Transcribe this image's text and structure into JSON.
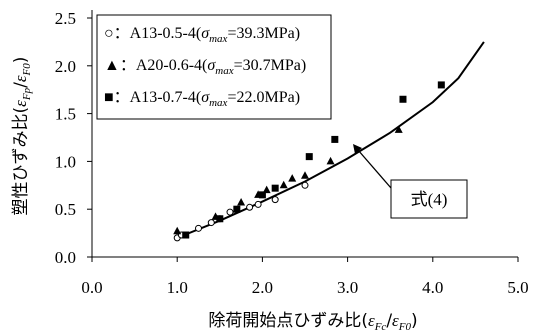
{
  "chart_data": {
    "type": "scatter",
    "xlabel": "除荷開始点ひずみ比(εFc/εF0)",
    "ylabel": "塑性ひずみ比(εFp/εF0)",
    "xlim": [
      0.0,
      5.0
    ],
    "ylim": [
      0.0,
      2.5
    ],
    "x_ticks": [
      "0.0",
      "1.0",
      "2.0",
      "3.0",
      "4.0",
      "5.0"
    ],
    "y_ticks": [
      "0.0",
      "0.5",
      "1.0",
      "1.5",
      "2.0",
      "2.5"
    ],
    "grid": false,
    "legend_position": "top-left",
    "series": [
      {
        "name": "A13-0.5-4(σmax=39.3MPa)",
        "marker": "open-circle",
        "points": [
          [
            1.0,
            0.2
          ],
          [
            1.05,
            0.23
          ],
          [
            1.25,
            0.3
          ],
          [
            1.4,
            0.36
          ],
          [
            1.5,
            0.4
          ],
          [
            1.62,
            0.47
          ],
          [
            1.85,
            0.52
          ],
          [
            1.95,
            0.55
          ],
          [
            2.15,
            0.6
          ],
          [
            2.5,
            0.75
          ]
        ]
      },
      {
        "name": "A20-0.6-4(σmax=30.7MPa)",
        "marker": "filled-triangle",
        "points": [
          [
            1.0,
            0.27
          ],
          [
            1.45,
            0.42
          ],
          [
            1.75,
            0.57
          ],
          [
            1.95,
            0.65
          ],
          [
            2.05,
            0.7
          ],
          [
            2.25,
            0.75
          ],
          [
            2.35,
            0.82
          ],
          [
            2.5,
            0.85
          ],
          [
            2.8,
            1.0
          ],
          [
            3.6,
            1.33
          ]
        ]
      },
      {
        "name": "A13-0.7-4(σmax=22.0MPa)",
        "marker": "filled-square",
        "points": [
          [
            1.1,
            0.23
          ],
          [
            1.5,
            0.4
          ],
          [
            1.7,
            0.5
          ],
          [
            2.0,
            0.65
          ],
          [
            2.15,
            0.72
          ],
          [
            2.55,
            1.05
          ],
          [
            2.85,
            1.23
          ],
          [
            3.65,
            1.65
          ],
          [
            4.1,
            1.8
          ]
        ]
      }
    ],
    "curve": {
      "name": "式(4)",
      "points": [
        [
          1.0,
          0.2
        ],
        [
          1.5,
          0.38
        ],
        [
          2.0,
          0.58
        ],
        [
          2.5,
          0.79
        ],
        [
          3.0,
          1.03
        ],
        [
          3.5,
          1.3
        ],
        [
          4.0,
          1.62
        ],
        [
          4.3,
          1.87
        ],
        [
          4.6,
          2.25
        ]
      ]
    }
  },
  "legend_labels": [
    {
      "prefix": "○：A13-0.5-4(",
      "sym": "σ",
      "sub": "max",
      "suffix": "=39.3MPa)"
    },
    {
      "prefix": "▲：A20-0.6-4(",
      "sym": "σ",
      "sub": "max",
      "suffix": "=30.7MPa)"
    },
    {
      "prefix": "■：A13-0.7-4(",
      "sym": "σ",
      "sub": "max",
      "suffix": "=22.0MPa)"
    }
  ],
  "axis_label_parts": {
    "x": {
      "text": "除荷開始点ひずみ比(",
      "e1": "ε",
      "s1": "Fc",
      "slash": "/",
      "e2": "ε",
      "s2": "F0",
      "close": ")"
    },
    "y": {
      "text": "塑性ひずみ比(",
      "e1": "ε",
      "s1": "Fp",
      "slash": "/",
      "e2": "ε",
      "s2": "F0",
      "close": ")"
    }
  },
  "annotation": {
    "text": "式(4)"
  }
}
